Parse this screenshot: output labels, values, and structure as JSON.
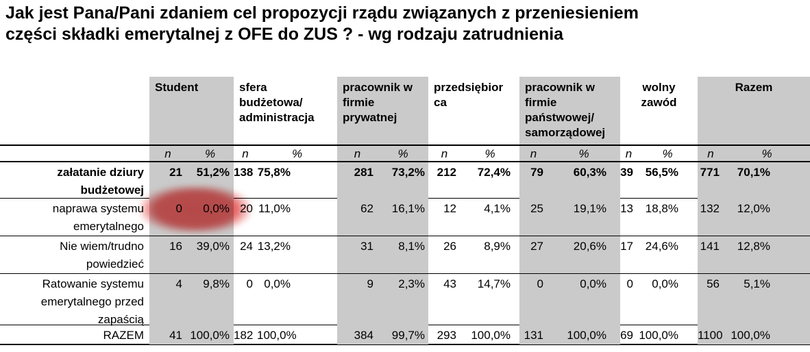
{
  "page": {
    "title_display": "Jak jest Pana/Pani zdaniem cel propozycji rządu związanych z przeniesieniem\nczęści składki emerytalnej z OFE do ZUS ? - wg rodzaju zatrudnienia"
  },
  "table": {
    "columns": [
      {
        "label": "Student",
        "shaded": true,
        "align": "left"
      },
      {
        "label": "sfera\nbudżetowa/\nadministracja",
        "shaded": false,
        "align": "left"
      },
      {
        "label": "pracownik w\nfirmie\nprywatnej",
        "shaded": true,
        "align": "left"
      },
      {
        "label": "przedsiębior\nca",
        "shaded": false,
        "align": "left"
      },
      {
        "label": "pracownik w\nfirmie\npaństwowej/\nsamorządowej",
        "shaded": true,
        "align": "left"
      },
      {
        "label": "wolny\nzawód",
        "shaded": false,
        "align": "center"
      },
      {
        "label": "Razem",
        "shaded": true,
        "align": "center"
      }
    ],
    "subheaders": {
      "n": "n",
      "pct": "%"
    },
    "rows": [
      {
        "label": "załatanie dziury\nbudżetowej",
        "bold": true,
        "cells": [
          {
            "n": "21",
            "pct": "51,2%"
          },
          {
            "n": "138",
            "pct": "75,8%"
          },
          {
            "n": "281",
            "pct": "73,2%"
          },
          {
            "n": "212",
            "pct": "72,4%"
          },
          {
            "n": "79",
            "pct": "60,3%"
          },
          {
            "n": "39",
            "pct": "56,5%"
          },
          {
            "n": "771",
            "pct": "70,1%"
          }
        ]
      },
      {
        "label": "naprawa systemu\nemerytalnego",
        "bold": false,
        "cells": [
          {
            "n": "0",
            "pct": "0,0%"
          },
          {
            "n": "20",
            "pct": "11,0%"
          },
          {
            "n": "62",
            "pct": "16,1%"
          },
          {
            "n": "12",
            "pct": "4,1%"
          },
          {
            "n": "25",
            "pct": "19,1%"
          },
          {
            "n": "13",
            "pct": "18,8%"
          },
          {
            "n": "132",
            "pct": "12,0%"
          }
        ]
      },
      {
        "label": "Nie wiem/trudno\npowiedzieć",
        "bold": false,
        "cells": [
          {
            "n": "16",
            "pct": "39,0%"
          },
          {
            "n": "24",
            "pct": "13,2%"
          },
          {
            "n": "31",
            "pct": "8,1%"
          },
          {
            "n": "26",
            "pct": "8,9%"
          },
          {
            "n": "27",
            "pct": "20,6%"
          },
          {
            "n": "17",
            "pct": "24,6%"
          },
          {
            "n": "141",
            "pct": "12,8%"
          }
        ]
      },
      {
        "label": "Ratowanie systemu\nemerytalnego przed\nzapaścią",
        "bold": false,
        "cells": [
          {
            "n": "4",
            "pct": "9,8%"
          },
          {
            "n": "0",
            "pct": "0,0%"
          },
          {
            "n": "9",
            "pct": "2,3%"
          },
          {
            "n": "43",
            "pct": "14,7%"
          },
          {
            "n": "0",
            "pct": "0,0%"
          },
          {
            "n": "0",
            "pct": "0,0%"
          },
          {
            "n": "56",
            "pct": "5,1%"
          }
        ]
      },
      {
        "label": "RAZEM",
        "bold": false,
        "cells": [
          {
            "n": "41",
            "pct": "100,0%"
          },
          {
            "n": "182",
            "pct": "100,0%"
          },
          {
            "n": "384",
            "pct": "99,7%"
          },
          {
            "n": "293",
            "pct": "100,0%"
          },
          {
            "n": "131",
            "pct": "100,0%"
          },
          {
            "n": "69",
            "pct": "100,0%"
          },
          {
            "n": "1100",
            "pct": "100,0%"
          }
        ]
      }
    ]
  },
  "annotation": {
    "shape": "ellipse",
    "color": "#e05454",
    "highlighted_row": "naprawa systemu emerytalnego",
    "highlighted_column": "Student",
    "highlighted_value": "0 / 0,0%"
  },
  "colors": {
    "shaded_column": "#cacaca",
    "rule": "#000000",
    "highlight": "#e05454",
    "text": "#000000"
  },
  "chart_data": {
    "type": "table",
    "title": "Jak jest Pana/Pani zdaniem cel propozycji rządu związanych z przeniesieniem części składki emerytalnej z OFE do ZUS ? - wg rodzaju zatrudnienia",
    "column_groups": [
      "Student",
      "sfera budżetowa/administracja",
      "pracownik w firmie prywatnej",
      "przedsiębiorca",
      "pracownik w firmie państwowej/samorządowej",
      "wolny zawód",
      "Razem"
    ],
    "measures": [
      "n",
      "%"
    ],
    "row_categories": [
      "załatanie dziury budżetowej",
      "naprawa systemu emerytalnego",
      "Nie wiem/trudno powiedzieć",
      "Ratowanie systemu emerytalnego przed zapaścią",
      "RAZEM"
    ],
    "n_values": [
      [
        21,
        138,
        281,
        212,
        79,
        39,
        771
      ],
      [
        0,
        20,
        62,
        12,
        25,
        13,
        132
      ],
      [
        16,
        24,
        31,
        26,
        27,
        17,
        141
      ],
      [
        4,
        0,
        9,
        43,
        0,
        0,
        56
      ],
      [
        41,
        182,
        384,
        293,
        131,
        69,
        1100
      ]
    ],
    "pct_values": [
      [
        51.2,
        75.8,
        73.2,
        72.4,
        60.3,
        56.5,
        70.1
      ],
      [
        0.0,
        11.0,
        16.1,
        4.1,
        19.1,
        18.8,
        12.0
      ],
      [
        39.0,
        13.2,
        8.1,
        8.9,
        20.6,
        24.6,
        12.8
      ],
      [
        9.8,
        0.0,
        2.3,
        14.7,
        0.0,
        0.0,
        5.1
      ],
      [
        100.0,
        100.0,
        99.7,
        100.0,
        100.0,
        100.0,
        100.0
      ]
    ],
    "annotation": "red ellipse highlighting Student / naprawa systemu emerytalnego = 0 (0,0%)"
  }
}
